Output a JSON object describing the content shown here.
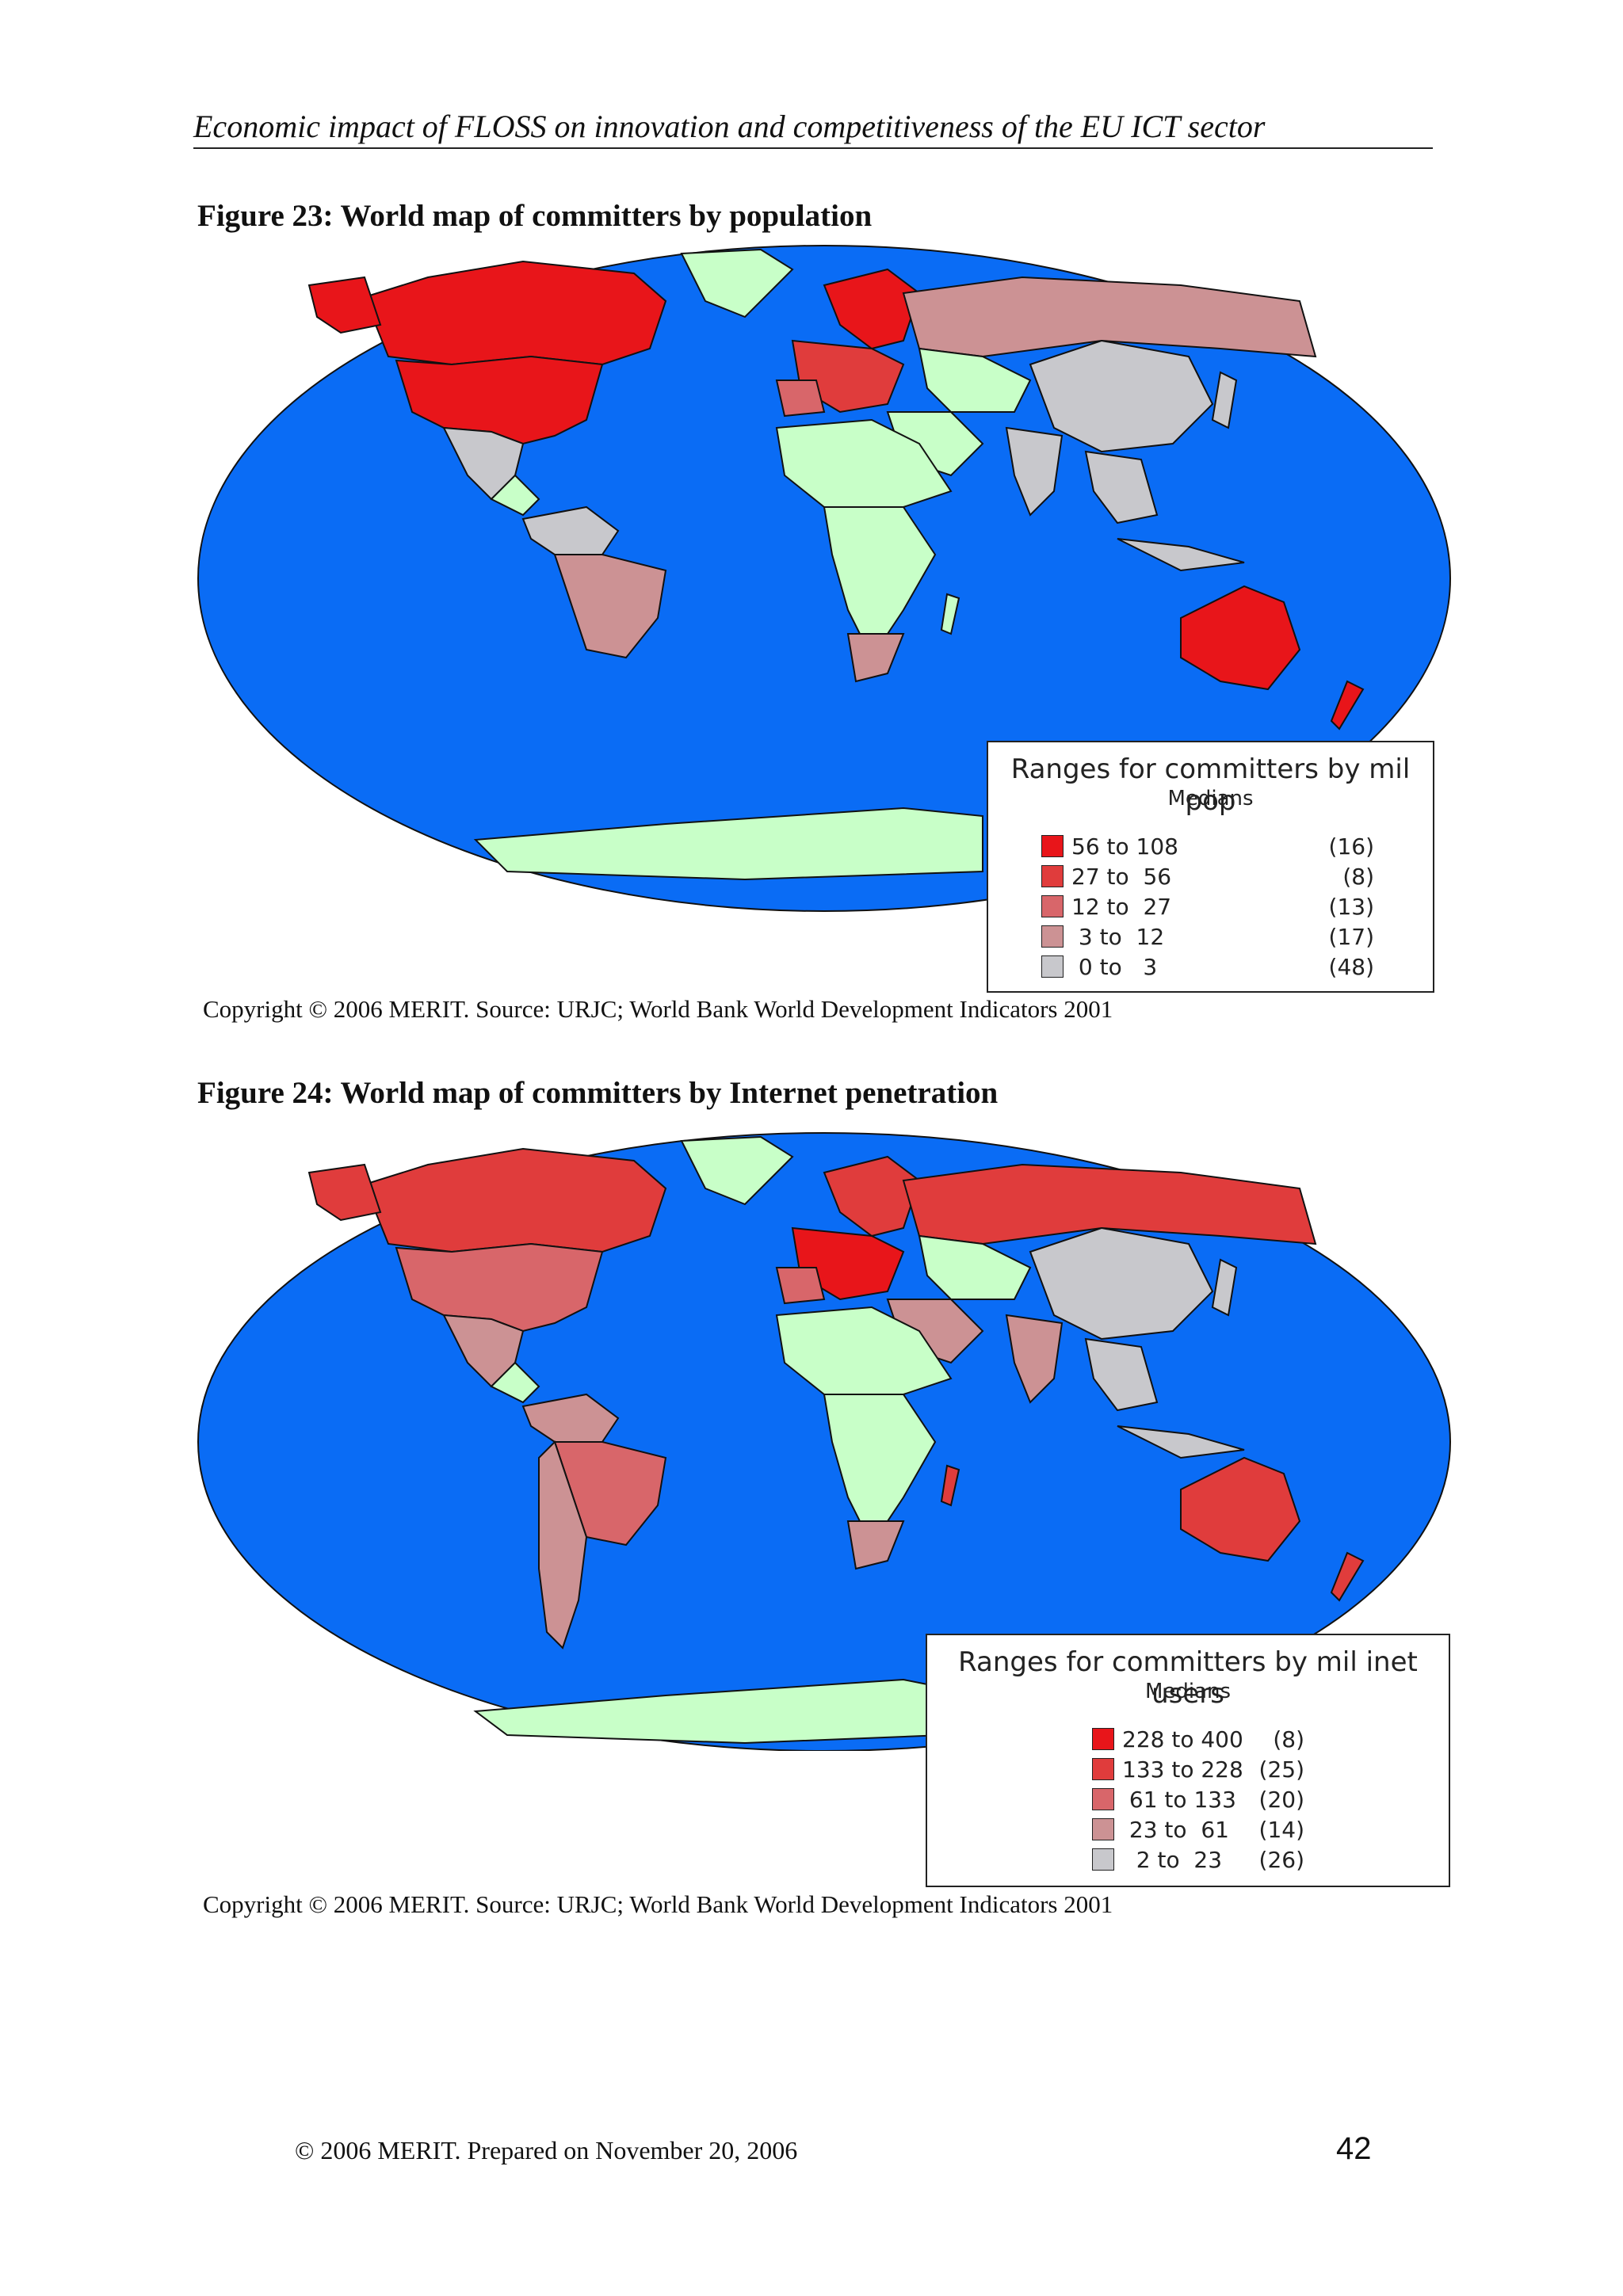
{
  "header": {
    "running_title": "Economic impact of FLOSS on innovation and competitiveness of the EU ICT sector"
  },
  "figure1": {
    "title": "Figure 23: World map of committers by population",
    "legend": {
      "title": "Ranges for committers by mil pop",
      "subtitle": "Medians",
      "items": [
        {
          "range": "56 to 108",
          "count": "(16)",
          "color": "#e8151a"
        },
        {
          "range": "27 to  56",
          "count": "(8)",
          "color": "#e03c3c"
        },
        {
          "range": "12 to  27",
          "count": "(13)",
          "color": "#d8666a"
        },
        {
          "range": " 3 to  12",
          "count": "(17)",
          "color": "#cc9294"
        },
        {
          "range": " 0 to   3",
          "count": "(48)",
          "color": "#c8c8cc"
        }
      ]
    },
    "caption": "Copyright © 2006 MERIT. Source: URJC; World Bank World Development Indicators 2001"
  },
  "figure2": {
    "title": "Figure 24: World map of committers by Internet penetration",
    "legend": {
      "title": "Ranges for committers by mil inet users",
      "subtitle": "Medians",
      "items": [
        {
          "range": "228 to 400",
          "count": "(8)",
          "color": "#e8151a"
        },
        {
          "range": "133 to 228",
          "count": "(25)",
          "color": "#e03c3c"
        },
        {
          "range": " 61 to 133",
          "count": "(20)",
          "color": "#d8666a"
        },
        {
          "range": " 23 to  61",
          "count": "(14)",
          "color": "#cc9294"
        },
        {
          "range": "  2 to  23",
          "count": "(26)",
          "color": "#c8c8cc"
        }
      ]
    },
    "caption": "Copyright © 2006 MERIT. Source: URJC; World Bank World Development Indicators 2001"
  },
  "colors": {
    "ocean": "#0a6cf5",
    "no_data": "#c8ffc8"
  },
  "footer": {
    "text": "© 2006 MERIT. Prepared on November 20, 2006",
    "page_number": "42"
  }
}
